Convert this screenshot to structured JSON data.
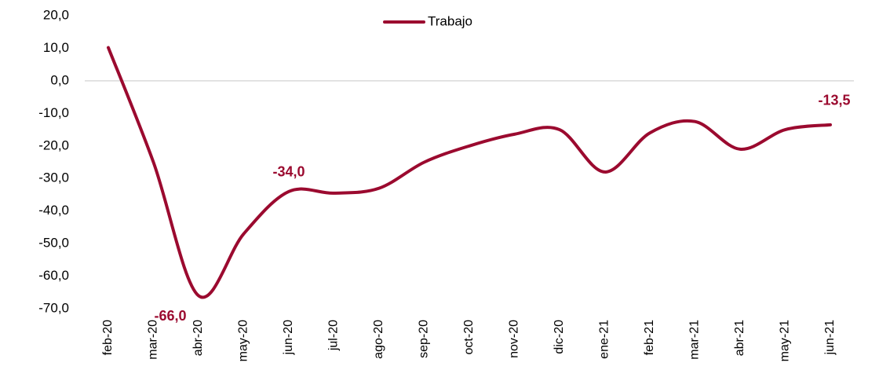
{
  "chart_data": {
    "type": "line",
    "categories": [
      "feb-20",
      "mar-20",
      "abr-20",
      "may-20",
      "jun-20",
      "jul-20",
      "ago-20",
      "sep-20",
      "oct-20",
      "nov-20",
      "dic-20",
      "ene-21",
      "feb-21",
      "mar-21",
      "abr-21",
      "may-21",
      "jun-21"
    ],
    "series": [
      {
        "name": "Trabajo",
        "color": "#9b0a2f",
        "values": [
          10.2,
          -25,
          -66.0,
          -47,
          -34.0,
          -34.5,
          -33,
          -25,
          -20,
          -16.4,
          -15,
          -28,
          -16,
          -12.5,
          -21,
          -15,
          -13.5
        ],
        "value_labels": [
          null,
          null,
          "-66,0",
          null,
          "-34,0",
          null,
          null,
          null,
          null,
          null,
          null,
          null,
          null,
          null,
          null,
          null,
          "-13,5"
        ]
      }
    ],
    "ylim": [
      -70,
      20
    ],
    "yticks": [
      {
        "value": -70,
        "label": "-70,0"
      },
      {
        "value": -60,
        "label": "-60,0"
      },
      {
        "value": -50,
        "label": "-50,0"
      },
      {
        "value": -40,
        "label": "-40,0"
      },
      {
        "value": -30,
        "label": "-30,0"
      },
      {
        "value": -20,
        "label": "-20,0"
      },
      {
        "value": -10,
        "label": "-10,0"
      },
      {
        "value": 0,
        "label": "0,0"
      },
      {
        "value": 10,
        "label": "10,0"
      },
      {
        "value": 20,
        "label": "20,0"
      }
    ],
    "legend": "top"
  }
}
